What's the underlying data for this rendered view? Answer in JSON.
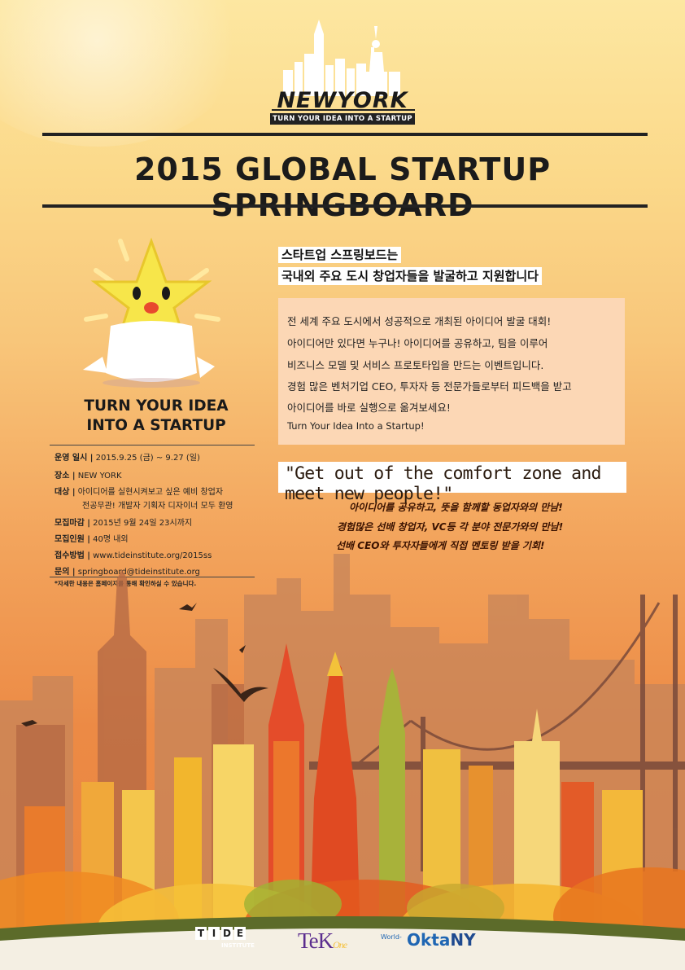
{
  "logo": {
    "city": "NEWYORK",
    "tagline": "TURN YOUR IDEA INTO A STARTUP"
  },
  "title": "2015 GLOBAL STARTUP SPRINGBOARD",
  "headline": {
    "line1": "스타트업 스프링보드는",
    "line2": "국내외 주요 도시 창업자들을 발굴하고 지원합니다"
  },
  "description": [
    "전 세계 주요 도시에서 성공적으로 개최된 아이디어 발굴 대회!",
    "아이디어만 있다면 누구나! 아이디어를 공유하고, 팀을 이루어",
    "비즈니스 모델 및 서비스 프로토타입을 만드는 이벤트입니다.",
    "경험 많은 벤처기업 CEO, 투자자 등 전문가들로부터 피드백을 받고",
    "아이디어를 바로 실행으로 옮겨보세요!",
    "Turn Your Idea Into a Startup!"
  ],
  "quote": "\"Get out of the comfort zone and meet new people!\"",
  "benefits": [
    "아이디어를 공유하고, 뜻을 함께할 동업자와의 만남!",
    "경험많은 선배 창업자, VC등 각 분야 전문가와의 만남!",
    "선배 CEO와 투자자들에게 직접 멘토링 받을 기회!"
  ],
  "mascot_caption": {
    "line1": "TURN YOUR IDEA",
    "line2": "INTO A STARTUP"
  },
  "info": {
    "schedule_label": "운영 일시 |",
    "schedule_value": "2015.9.25 (금) ~ 9.27 (일)",
    "place_label": "장소 |",
    "place_value": "NEW YORK",
    "target_label": "대상 |",
    "target_value1": "아이디어를 실현시켜보고 싶은 예비 창업자",
    "target_value2": "전공무관! 개발자 기획자 디자이너 모두 환영",
    "deadline_label": "모집마감 |",
    "deadline_value": "2015년 9월 24일 23시까지",
    "capacity_label": "모집인원 |",
    "capacity_value": "40명 내외",
    "apply_label": "접수방법 |",
    "apply_value": "www.tideinstitute.org/2015ss",
    "contact_label": "문의 |",
    "contact_value": "springboard@tideinstitute.org",
    "footnote": "*자세한 내용은 홈페이지를 통해 확인하실 수 있습니다."
  },
  "sponsors": {
    "tide_letters": [
      "T",
      "I",
      "D",
      "E"
    ],
    "tide_sub": "INSTITUTE",
    "tekone_main": "TeK",
    "tekone_sub": "One",
    "okta_prefix": "World-",
    "okta_main": "Okta",
    "okta_suffix": "NY"
  },
  "colors": {
    "background_top": "#fde7a1",
    "background_bottom": "#e9843f",
    "title_text": "#1b1b1b",
    "description_box": "#fcd7b5",
    "benefit_text": "#3a1200",
    "tekone": "#5b2d8e",
    "okta_blue": "#1f66b3"
  }
}
